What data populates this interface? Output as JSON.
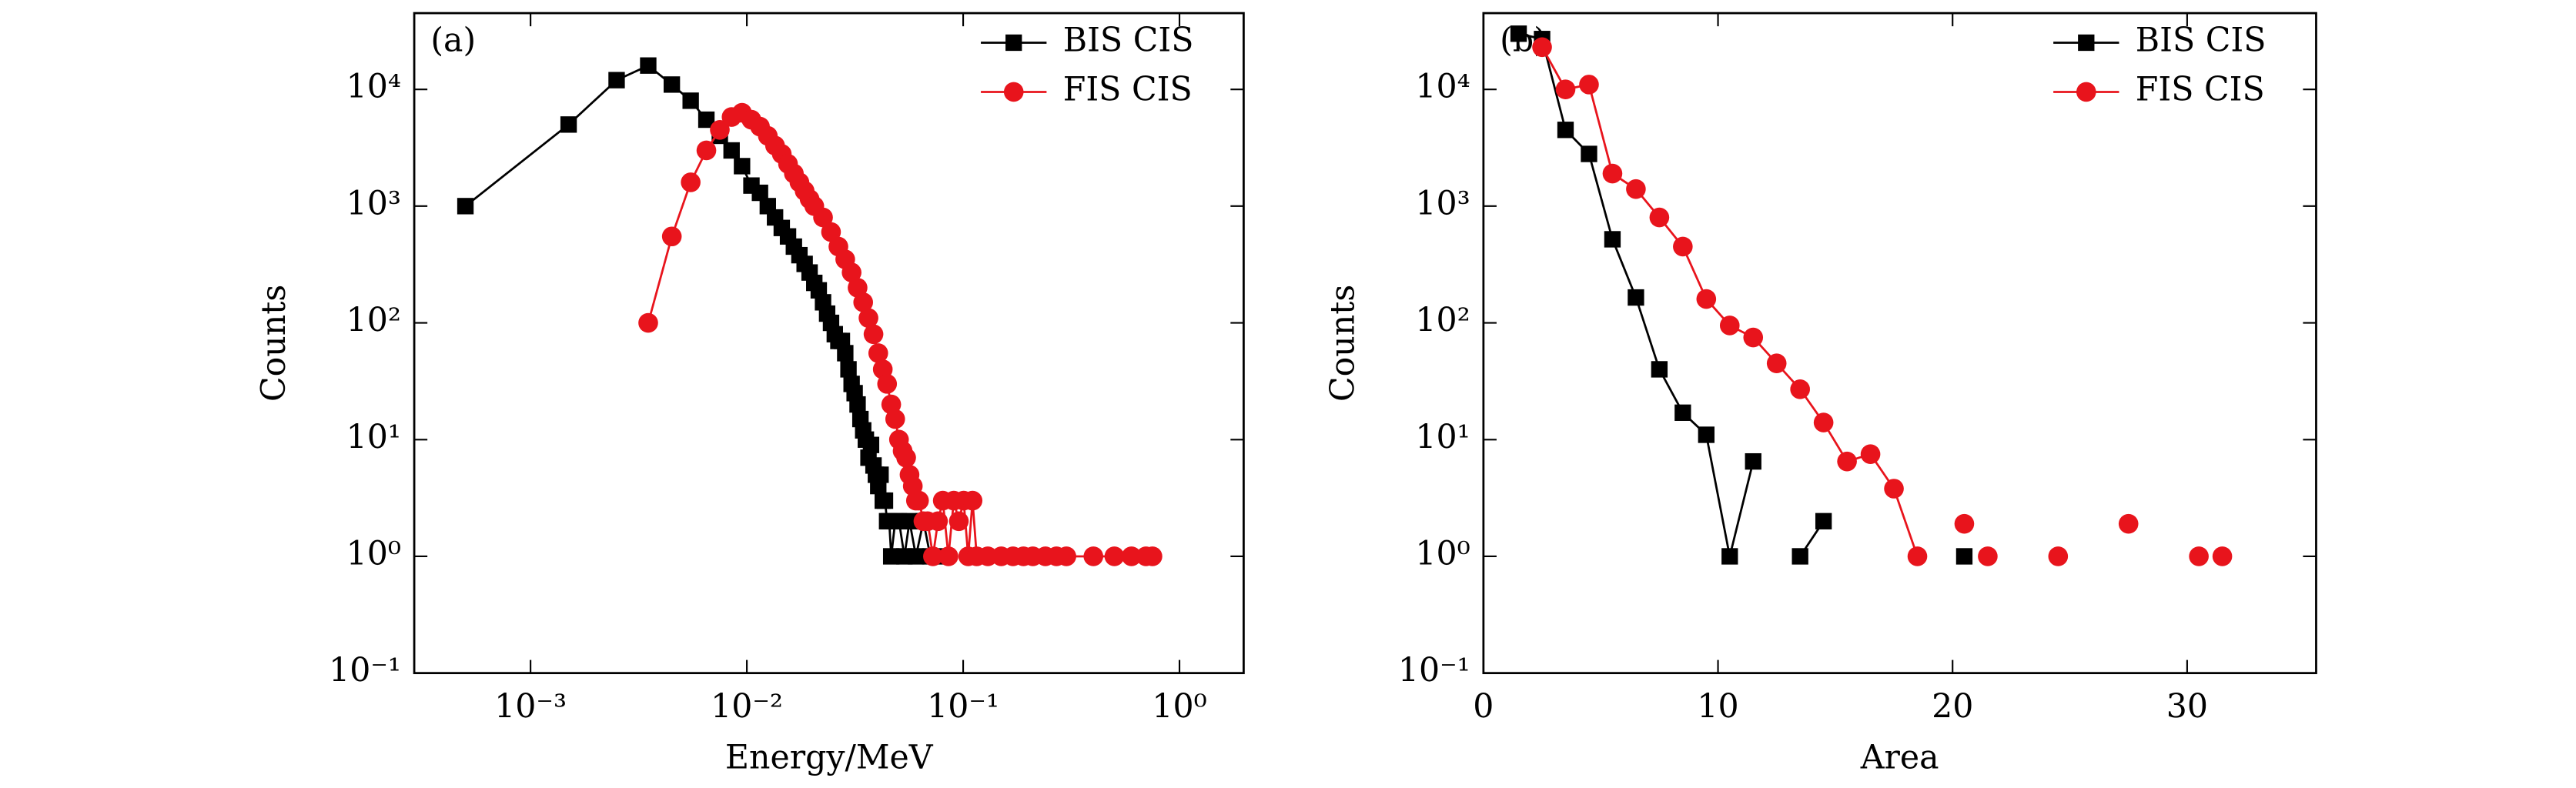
{
  "chart_data": [
    {
      "type": "line",
      "annotation": "(a)",
      "x_label": "Energy/MeV",
      "y_label": "Counts",
      "log_x": true,
      "log_y": true,
      "legend": "upper right",
      "xlim": [
        0.00029,
        1.98
      ],
      "ylim": [
        0.1,
        45000
      ],
      "xticks": [
        {
          "value": 0.001,
          "label": "10⁻³"
        },
        {
          "value": 0.01,
          "label": "10⁻²"
        },
        {
          "value": 0.1,
          "label": "10⁻¹"
        },
        {
          "value": 1,
          "label": "10⁰"
        }
      ],
      "yticks": [
        {
          "value": 0.1,
          "label": "10⁻¹"
        },
        {
          "value": 1,
          "label": "10⁰"
        },
        {
          "value": 10,
          "label": "10¹"
        },
        {
          "value": 100,
          "label": "10²"
        },
        {
          "value": 1000,
          "label": "10³"
        },
        {
          "value": 10000,
          "label": "10⁴"
        }
      ],
      "series": [
        {
          "name": "BIS CIS",
          "color": "#000000",
          "marker": "square",
          "x": [
            0.0005,
            0.0015,
            0.0025,
            0.0035,
            0.0045,
            0.0055,
            0.0065,
            0.0075,
            0.0085,
            0.0095,
            0.0105,
            0.0115,
            0.0125,
            0.0135,
            0.0145,
            0.0155,
            0.0165,
            0.0175,
            0.0185,
            0.0195,
            0.0205,
            0.0215,
            0.0225,
            0.0235,
            0.0245,
            0.0255,
            0.0265,
            0.0275,
            0.0285,
            0.0295,
            0.0305,
            0.0315,
            0.0325,
            0.0335,
            0.0345,
            0.0355,
            0.0365,
            0.0375,
            0.0385,
            0.0395,
            0.0405,
            0.0415,
            0.0425,
            0.0435,
            0.0445,
            0.0455,
            0.0465,
            0.0485,
            0.0505,
            0.0535,
            0.0565,
            0.0605,
            0.0655,
            0.0705,
            0.0755
          ],
          "values": [
            1000,
            5000,
            12000,
            16000,
            11000,
            8000,
            5500,
            4000,
            3000,
            2200,
            1500,
            1300,
            1000,
            800,
            650,
            550,
            450,
            380,
            320,
            270,
            220,
            190,
            150,
            120,
            100,
            80,
            70,
            70,
            55,
            40,
            30,
            25,
            20,
            15,
            12,
            10,
            7,
            9,
            6,
            5,
            4,
            5,
            3,
            3,
            2,
            2,
            1,
            2,
            2,
            1,
            2,
            1,
            2,
            1,
            1
          ]
        },
        {
          "name": "FIS CIS",
          "color": "#e8141c",
          "marker": "circle",
          "x": [
            0.0035,
            0.0045,
            0.0055,
            0.0065,
            0.0075,
            0.0085,
            0.0095,
            0.0105,
            0.0115,
            0.0125,
            0.0135,
            0.0145,
            0.0155,
            0.0165,
            0.0175,
            0.0185,
            0.0195,
            0.0205,
            0.0225,
            0.0245,
            0.0265,
            0.0285,
            0.0305,
            0.0325,
            0.0345,
            0.0365,
            0.0385,
            0.0405,
            0.0425,
            0.0445,
            0.0465,
            0.0485,
            0.0505,
            0.0525,
            0.0545,
            0.0565,
            0.0585,
            0.0605,
            0.0625,
            0.0655,
            0.0685,
            0.0725,
            0.0765,
            0.0805,
            0.0855,
            0.0905,
            0.0955,
            0.1005,
            0.1055,
            0.1105,
            0.1155,
            0.13,
            0.15,
            0.17,
            0.19,
            0.21,
            0.24,
            0.27,
            0.3,
            0.4,
            0.5,
            0.6,
            0.7,
            0.75
          ],
          "values": [
            100,
            550,
            1600,
            3000,
            4500,
            5800,
            6300,
            5500,
            4800,
            4000,
            3300,
            2800,
            2300,
            1900,
            1600,
            1350,
            1150,
            1000,
            800,
            600,
            450,
            350,
            270,
            200,
            150,
            110,
            80,
            55,
            40,
            30,
            20,
            15,
            10,
            8,
            7,
            5,
            4,
            3,
            3,
            2,
            2,
            1,
            2,
            3,
            1,
            3,
            2,
            3,
            1,
            3,
            1,
            1,
            1,
            1,
            1,
            1,
            1,
            1,
            1,
            1,
            1,
            1,
            1,
            1
          ]
        }
      ]
    },
    {
      "type": "line",
      "annotation": "(b)",
      "x_label": "Area",
      "y_label": "Counts",
      "log_x": false,
      "log_y": true,
      "legend": "upper right",
      "xlim": [
        0,
        35.5
      ],
      "ylim": [
        0.1,
        45000
      ],
      "xticks": [
        0,
        10,
        20,
        30
      ],
      "yticks": [
        {
          "value": 0.1,
          "label": "10⁻¹"
        },
        {
          "value": 1,
          "label": "10⁰"
        },
        {
          "value": 10,
          "label": "10¹"
        },
        {
          "value": 100,
          "label": "10²"
        },
        {
          "value": 1000,
          "label": "10³"
        },
        {
          "value": 10000,
          "label": "10⁴"
        }
      ],
      "series": [
        {
          "name": "BIS CIS",
          "color": "#000000",
          "marker": "square",
          "x": [
            1.5,
            2.5,
            3.5,
            4.5,
            5.5,
            6.5,
            7.5,
            8.5,
            9.5,
            10.5,
            11.5,
            12.5,
            13.5,
            14.5,
            15.5,
            20.5
          ],
          "values": [
            30000,
            27000,
            4500,
            2800,
            520,
            165,
            40,
            17,
            11,
            1,
            6.5,
            null,
            1,
            2,
            null,
            1
          ]
        },
        {
          "name": "FIS CIS",
          "color": "#e8141c",
          "marker": "circle",
          "x": [
            2.5,
            3.5,
            4.5,
            5.5,
            6.5,
            7.5,
            8.5,
            9.5,
            10.5,
            11.5,
            12.5,
            13.5,
            14.5,
            15.5,
            16.5,
            17.5,
            18.5,
            19.5,
            20.5,
            21,
            21.5,
            23,
            24.5,
            26,
            27.5,
            29,
            30.5,
            31,
            31.5
          ],
          "values": [
            23000,
            10000,
            11000,
            1900,
            1400,
            800,
            450,
            160,
            95,
            75,
            45,
            27,
            14,
            6.5,
            7.5,
            3.8,
            1,
            null,
            1.9,
            null,
            1,
            null,
            1,
            null,
            1.9,
            null,
            1,
            null,
            1
          ]
        }
      ]
    }
  ]
}
